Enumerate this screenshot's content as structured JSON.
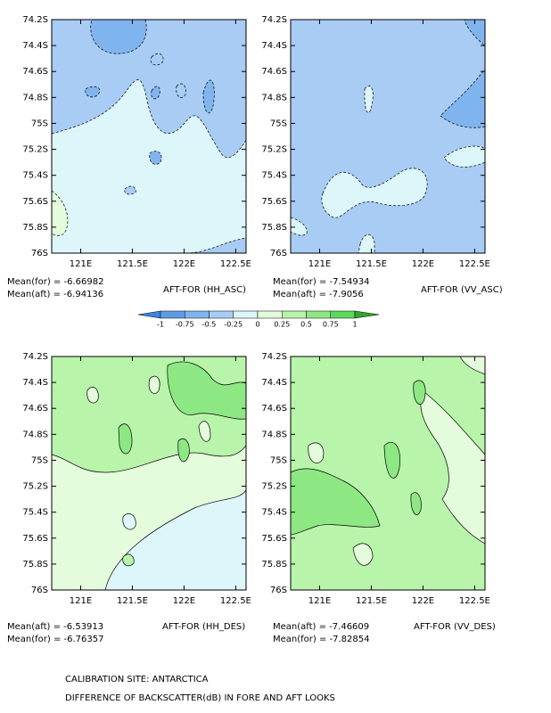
{
  "chart_data": [
    {
      "type": "contour",
      "title": "AFT-FOR (HH_ASC)",
      "annotations": [
        "Mean(for) = -6.66982",
        "Mean(aft) = -6.94136"
      ],
      "xlim": [
        120.72,
        122.6
      ],
      "ylim": [
        74.2,
        76
      ],
      "xticks": [
        {
          "value": 121,
          "label": "121E"
        },
        {
          "value": 121.5,
          "label": "121.5E"
        },
        {
          "value": 122,
          "label": "122E"
        },
        {
          "value": 122.5,
          "label": "122.5E"
        }
      ],
      "yticks": [
        {
          "value": 74.2,
          "label": "74.2S"
        },
        {
          "value": 74.4,
          "label": "74.4S"
        },
        {
          "value": 74.6,
          "label": "74.6S"
        },
        {
          "value": 74.8,
          "label": "74.8S"
        },
        {
          "value": 75,
          "label": "75S"
        },
        {
          "value": 75.2,
          "label": "75.2S"
        },
        {
          "value": 75.4,
          "label": "75.4S"
        },
        {
          "value": 75.6,
          "label": "75.6S"
        },
        {
          "value": 75.8,
          "label": "75.8S"
        },
        {
          "value": 76,
          "label": "76S"
        }
      ]
    },
    {
      "type": "contour",
      "title": "AFT-FOR (VV_ASC)",
      "annotations": [
        "Mean(for) = -7.54934",
        "Mean(aft) = -7.9056"
      ],
      "xlim": [
        120.72,
        122.6
      ],
      "ylim": [
        74.2,
        76
      ],
      "xticks": [
        {
          "value": 121,
          "label": "121E"
        },
        {
          "value": 121.5,
          "label": "121.5E"
        },
        {
          "value": 122,
          "label": "122E"
        },
        {
          "value": 122.5,
          "label": "122.5E"
        }
      ],
      "yticks": [
        {
          "value": 74.2,
          "label": "74.2S"
        },
        {
          "value": 74.4,
          "label": "74.4S"
        },
        {
          "value": 74.6,
          "label": "74.6S"
        },
        {
          "value": 74.8,
          "label": "74.8S"
        },
        {
          "value": 75,
          "label": "75S"
        },
        {
          "value": 75.2,
          "label": "75.2S"
        },
        {
          "value": 75.4,
          "label": "75.4S"
        },
        {
          "value": 75.6,
          "label": "75.6S"
        },
        {
          "value": 75.8,
          "label": "75.8S"
        },
        {
          "value": 76,
          "label": "76S"
        }
      ]
    },
    {
      "type": "contour",
      "title": "AFT-FOR (HH_DES)",
      "annotations": [
        "Mean(aft) = -6.53913",
        "Mean(for) = -6.76357"
      ],
      "xlim": [
        120.72,
        122.6
      ],
      "ylim": [
        74.2,
        76
      ],
      "xticks": [
        {
          "value": 121,
          "label": "121E"
        },
        {
          "value": 121.5,
          "label": "121.5E"
        },
        {
          "value": 122,
          "label": "122E"
        },
        {
          "value": 122.5,
          "label": "122.5E"
        }
      ],
      "yticks": [
        {
          "value": 74.2,
          "label": "74.2S"
        },
        {
          "value": 74.4,
          "label": "74.4S"
        },
        {
          "value": 74.6,
          "label": "74.6S"
        },
        {
          "value": 74.8,
          "label": "74.8S"
        },
        {
          "value": 75,
          "label": "75S"
        },
        {
          "value": 75.2,
          "label": "75.2S"
        },
        {
          "value": 75.4,
          "label": "75.4S"
        },
        {
          "value": 75.6,
          "label": "75.6S"
        },
        {
          "value": 75.8,
          "label": "75.8S"
        },
        {
          "value": 76,
          "label": "76S"
        }
      ]
    },
    {
      "type": "contour",
      "title": "AFT-FOR (VV_DES)",
      "annotations": [
        "Mean(aft) = -7.46609",
        "Mean(for) = -7.82854"
      ],
      "xlim": [
        120.72,
        122.6
      ],
      "ylim": [
        74.2,
        76
      ],
      "xticks": [
        {
          "value": 121,
          "label": "121E"
        },
        {
          "value": 121.5,
          "label": "121.5E"
        },
        {
          "value": 122,
          "label": "122E"
        },
        {
          "value": 122.5,
          "label": "122.5E"
        }
      ],
      "yticks": [
        {
          "value": 74.2,
          "label": "74.2S"
        },
        {
          "value": 74.4,
          "label": "74.4S"
        },
        {
          "value": 74.6,
          "label": "74.6S"
        },
        {
          "value": 74.8,
          "label": "74.8S"
        },
        {
          "value": 75,
          "label": "75S"
        },
        {
          "value": 75.2,
          "label": "75.2S"
        },
        {
          "value": 75.4,
          "label": "75.4S"
        },
        {
          "value": 75.6,
          "label": "75.6S"
        },
        {
          "value": 75.8,
          "label": "75.8S"
        },
        {
          "value": 76,
          "label": "76S"
        }
      ]
    }
  ],
  "colorbar": {
    "levels": [
      -1,
      -0.75,
      -0.5,
      -0.25,
      0,
      0.25,
      0.5,
      0.75,
      1
    ],
    "colors": [
      "#3d86de",
      "#5c9ce6",
      "#80b4ee",
      "#a8ccf4",
      "#dcf6fa",
      "#e4fbdc",
      "#b9f4ab",
      "#8de884",
      "#5cd85c",
      "#2ea82e"
    ]
  },
  "footer": [
    "CALIBRATION SITE: ANTARCTICA",
    "DIFFERENCE OF BACKSCATTER(dB) IN FORE AND AFT LOOKS"
  ]
}
